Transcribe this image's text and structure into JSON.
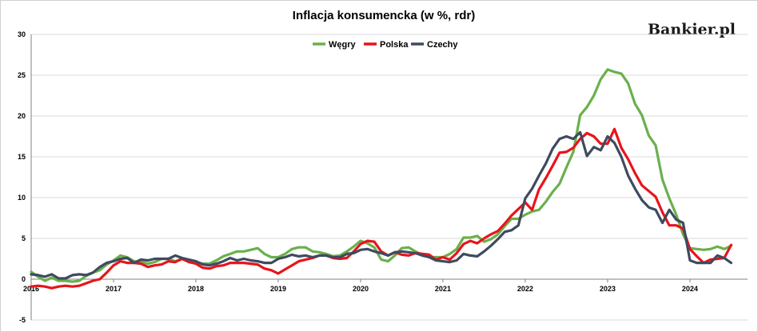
{
  "brand": {
    "logo_text": "Bankier.pl"
  },
  "chart_data": {
    "type": "line",
    "title": "Inflacja konsumencka (w %, rdr)",
    "xlabel": "",
    "ylabel": "",
    "ylim": [
      -5,
      30
    ],
    "xlim": [
      2016.0,
      2024.7
    ],
    "y_ticks": [
      -5,
      0,
      5,
      10,
      15,
      20,
      25,
      30
    ],
    "x_ticks": [
      {
        "label": "2016",
        "value": 2016
      },
      {
        "label": "2017",
        "value": 2017
      },
      {
        "label": "2018",
        "value": 2018
      },
      {
        "label": "2019",
        "value": 2019
      },
      {
        "label": "2020",
        "value": 2020
      },
      {
        "label": "2021",
        "value": 2021
      },
      {
        "label": "2022",
        "value": 2022
      },
      {
        "label": "2023",
        "value": 2023
      },
      {
        "label": "2024",
        "value": 2024
      }
    ],
    "grid": "horizontal",
    "legend_position": "top-center",
    "series": [
      {
        "name": "Węgry",
        "color": "#6ab04c",
        "x_start": 2016.0,
        "x_step": 0.08333,
        "values": [
          0.9,
          0.3,
          -0.2,
          0.2,
          -0.2,
          -0.2,
          -0.3,
          -0.2,
          0.4,
          0.8,
          1.1,
          1.8,
          2.3,
          2.9,
          2.7,
          2.2,
          2.1,
          1.9,
          2.1,
          2.5,
          2.5,
          2.2,
          2.5,
          2.1,
          2.1,
          1.9,
          1.9,
          2.3,
          2.8,
          3.1,
          3.4,
          3.4,
          3.6,
          3.8,
          3.1,
          2.7,
          2.7,
          3.1,
          3.7,
          3.9,
          3.9,
          3.4,
          3.3,
          3.1,
          2.8,
          2.9,
          3.4,
          4.0,
          4.7,
          4.4,
          3.9,
          2.4,
          2.2,
          2.9,
          3.8,
          3.9,
          3.4,
          3.0,
          2.7,
          2.7,
          2.7,
          3.1,
          3.7,
          5.1,
          5.1,
          5.3,
          4.6,
          4.9,
          5.5,
          6.5,
          7.4,
          7.4,
          7.9,
          8.3,
          8.5,
          9.5,
          10.7,
          11.7,
          13.7,
          15.6,
          20.1,
          21.1,
          22.5,
          24.5,
          25.7,
          25.4,
          25.2,
          24.0,
          21.5,
          20.1,
          17.6,
          16.4,
          12.2,
          9.9,
          7.9,
          5.5,
          3.8,
          3.7,
          3.6,
          3.7,
          4.0,
          3.7,
          4.1
        ]
      },
      {
        "name": "Polska",
        "color": "#e8141b",
        "x_start": 2016.0,
        "x_step": 0.08333,
        "values": [
          -0.9,
          -0.8,
          -0.9,
          -1.1,
          -0.9,
          -0.8,
          -0.9,
          -0.8,
          -0.5,
          -0.2,
          0.0,
          0.8,
          1.7,
          2.2,
          2.0,
          2.0,
          1.9,
          1.5,
          1.7,
          1.8,
          2.2,
          2.1,
          2.5,
          2.1,
          1.9,
          1.4,
          1.3,
          1.6,
          1.7,
          2.0,
          2.0,
          2.0,
          1.9,
          1.8,
          1.3,
          1.1,
          0.7,
          1.2,
          1.7,
          2.2,
          2.4,
          2.6,
          2.9,
          2.9,
          2.6,
          2.5,
          2.6,
          3.4,
          4.3,
          4.7,
          4.6,
          3.4,
          2.9,
          3.3,
          3.0,
          2.9,
          3.2,
          3.1,
          3.0,
          2.4,
          2.7,
          2.4,
          3.2,
          4.3,
          4.7,
          4.4,
          5.0,
          5.5,
          5.9,
          6.8,
          7.8,
          8.6,
          9.4,
          8.5,
          11.0,
          12.4,
          13.9,
          15.5,
          15.6,
          16.1,
          17.2,
          17.9,
          17.5,
          16.6,
          16.6,
          18.4,
          16.1,
          14.7,
          13.0,
          11.5,
          10.8,
          10.1,
          8.2,
          6.6,
          6.6,
          6.2,
          3.7,
          2.8,
          2.0,
          2.4,
          2.5,
          2.6,
          4.2
        ]
      },
      {
        "name": "Czechy",
        "color": "#3f4a60",
        "x_start": 2016.0,
        "x_step": 0.08333,
        "values": [
          0.6,
          0.5,
          0.3,
          0.6,
          0.1,
          0.1,
          0.5,
          0.6,
          0.5,
          0.8,
          1.5,
          2.0,
          2.2,
          2.5,
          2.6,
          2.0,
          2.4,
          2.3,
          2.5,
          2.5,
          2.5,
          2.9,
          2.6,
          2.4,
          2.2,
          1.8,
          1.7,
          1.9,
          2.2,
          2.6,
          2.3,
          2.5,
          2.3,
          2.2,
          2.0,
          2.0,
          2.5,
          2.7,
          3.0,
          2.8,
          2.9,
          2.7,
          2.9,
          2.9,
          2.7,
          2.7,
          3.1,
          3.2,
          3.6,
          3.7,
          3.4,
          3.2,
          2.9,
          3.3,
          3.4,
          3.3,
          3.2,
          2.9,
          2.7,
          2.3,
          2.2,
          2.1,
          2.3,
          3.1,
          2.9,
          2.8,
          3.4,
          4.1,
          4.9,
          5.8,
          6.0,
          6.6,
          9.9,
          11.1,
          12.7,
          14.2,
          16.0,
          17.2,
          17.5,
          17.2,
          18.0,
          15.1,
          16.2,
          15.8,
          17.5,
          16.7,
          15.0,
          12.7,
          11.1,
          9.7,
          8.8,
          8.5,
          6.9,
          8.5,
          7.3,
          6.9,
          2.3,
          2.0,
          2.0,
          2.0,
          2.9,
          2.6,
          2.0
        ]
      }
    ]
  }
}
